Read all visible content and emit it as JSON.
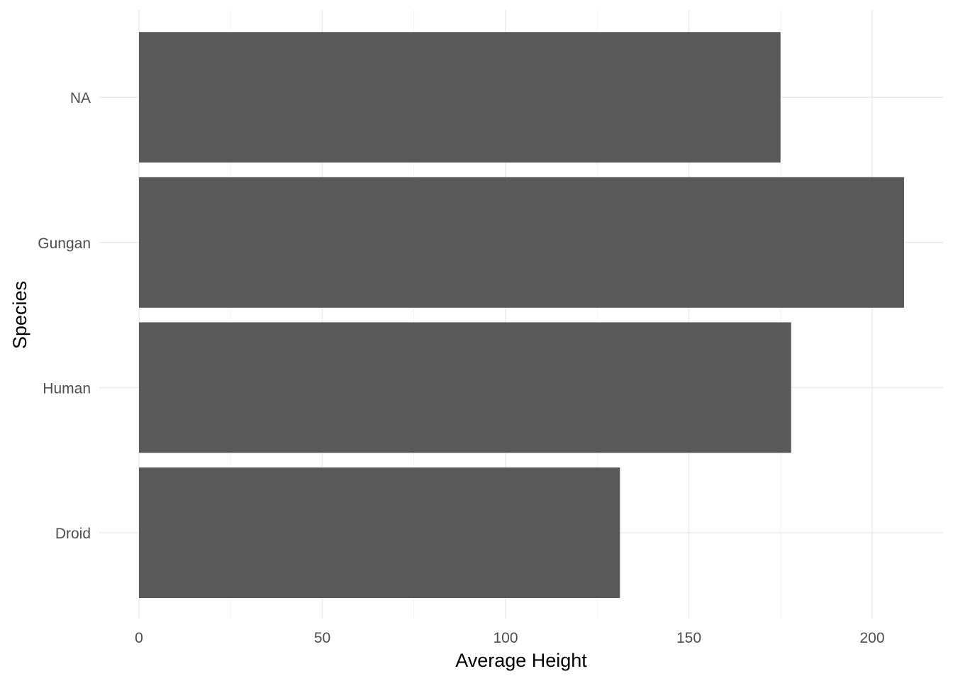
{
  "chart_data": {
    "type": "bar",
    "orientation": "horizontal",
    "categories": [
      "Droid",
      "Human",
      "Gungan",
      "NA"
    ],
    "values": [
      131.2,
      177.9,
      208.7,
      175.0
    ],
    "xlabel": "Average Height",
    "ylabel": "Species",
    "xlim": [
      0,
      215
    ],
    "xticks": [
      0,
      50,
      100,
      150,
      200
    ],
    "grid": true,
    "legend": "none",
    "colors": {
      "bar": "#595959",
      "grid_major": "#ebebeb",
      "grid_minor": "#f2f2f2",
      "tick_text": "#4d4d4d",
      "title_text": "#000000",
      "background": "#ffffff"
    }
  }
}
